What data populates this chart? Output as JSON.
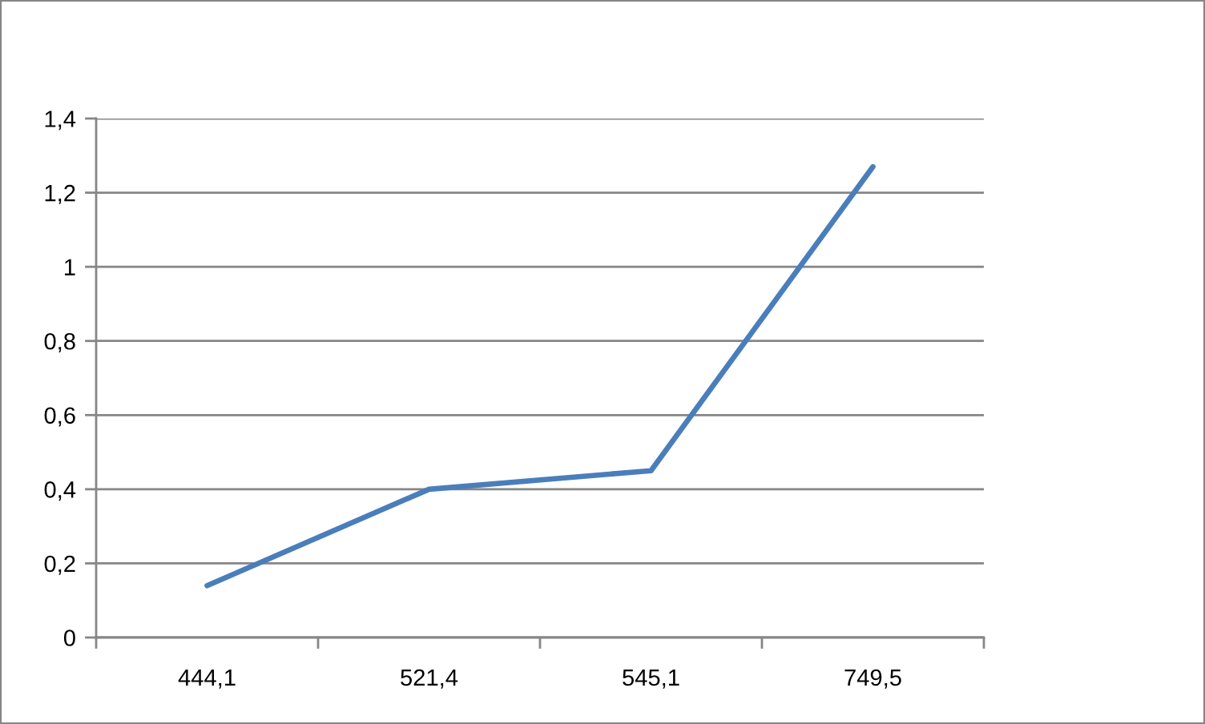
{
  "chart_data": {
    "type": "line",
    "categories": [
      "444,1",
      "521,4",
      "545,1",
      "749,5"
    ],
    "series": [
      {
        "color": "#4a7ebb",
        "values": [
          0.14,
          0.4,
          0.45,
          1.27
        ]
      }
    ],
    "ylim": [
      0,
      1.4
    ],
    "yticks": [
      0,
      {
        "value": 0.2,
        "label": "0,2"
      },
      {
        "value": 0.4,
        "label": "0,4"
      },
      {
        "value": 0.6,
        "label": "0,6"
      },
      {
        "value": 0.8,
        "label": "0,8"
      },
      1,
      {
        "value": 1.2,
        "label": "1,2"
      },
      {
        "value": 1.4,
        "label": "1,4"
      }
    ],
    "grid": "y",
    "marker": "none",
    "line_style": "solid"
  }
}
